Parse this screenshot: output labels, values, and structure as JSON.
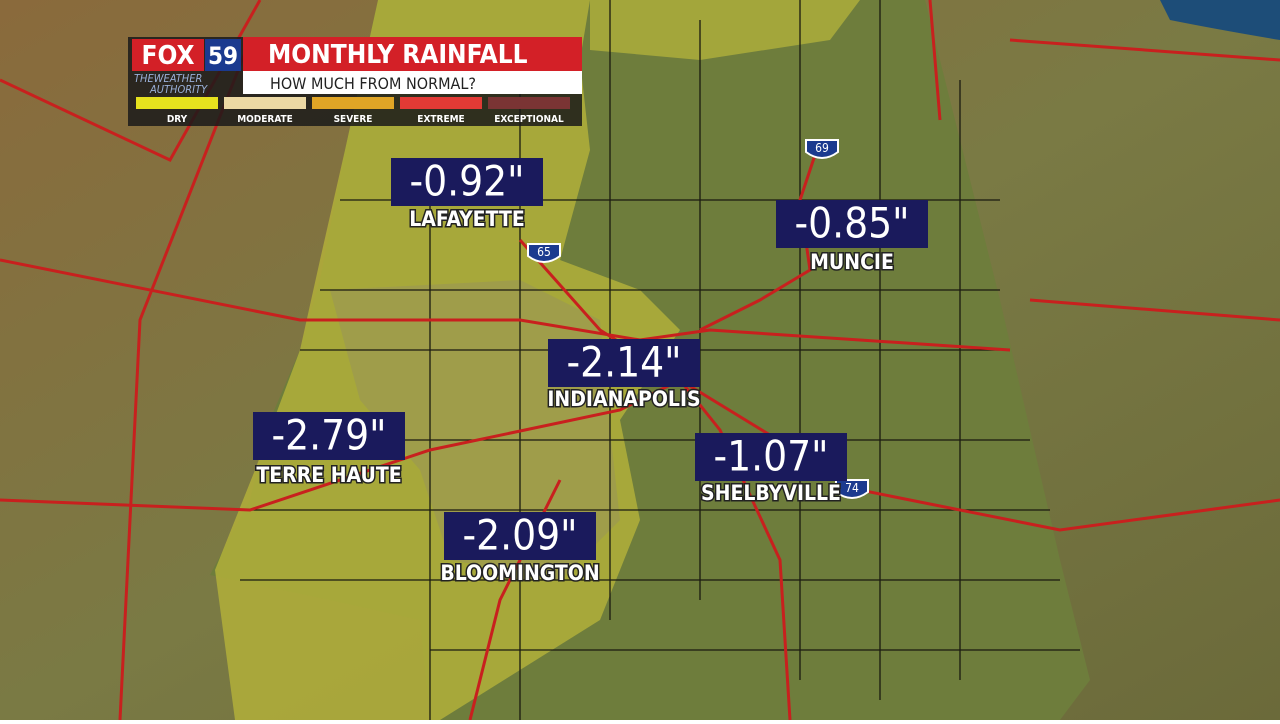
{
  "header": {
    "logo": "FOX",
    "channel": "59",
    "tagline_1": "THEWEATHER",
    "tagline_2": "AUTHORITY",
    "title": "MONTHLY RAINFALL",
    "subtitle": "HOW MUCH FROM NORMAL?"
  },
  "legend": [
    {
      "label": "DRY",
      "color": "#e6e21e"
    },
    {
      "label": "MODERATE",
      "color": "#ecd9a4"
    },
    {
      "label": "SEVERE",
      "color": "#e0a526"
    },
    {
      "label": "EXTREME",
      "color": "#e23a35"
    },
    {
      "label": "EXCEPTIONAL",
      "color": "#7a3434"
    }
  ],
  "cities": [
    {
      "name": "LAFAYETTE",
      "value": "-0.92\""
    },
    {
      "name": "MUNCIE",
      "value": "-0.85\""
    },
    {
      "name": "INDIANAPOLIS",
      "value": "-2.14\""
    },
    {
      "name": "TERRE HAUTE",
      "value": "-2.79\""
    },
    {
      "name": "SHELBYVILLE",
      "value": "-1.07\""
    },
    {
      "name": "BLOOMINGTON",
      "value": "-2.09\""
    }
  ],
  "highways": [
    "65",
    "69",
    "74"
  ]
}
